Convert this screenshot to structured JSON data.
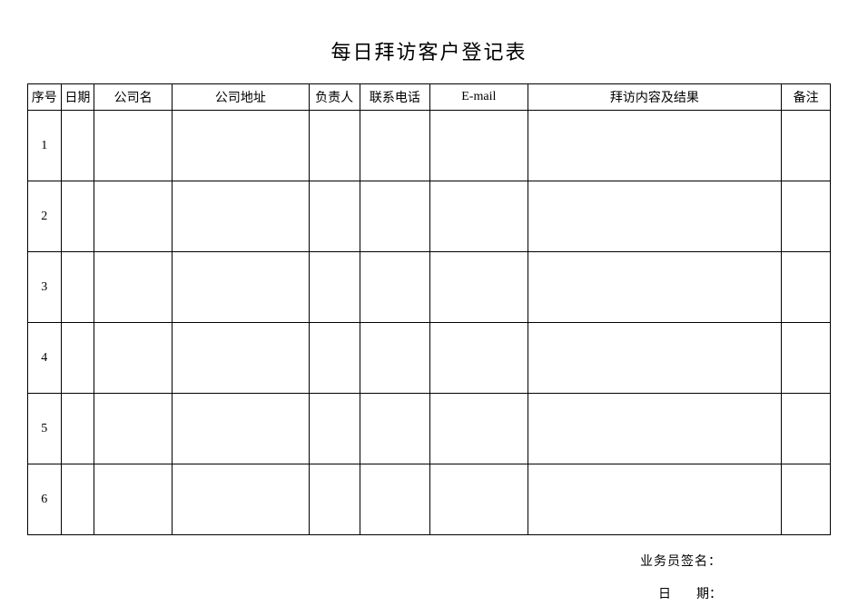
{
  "title": "每日拜访客户登记表",
  "table": {
    "columns": [
      {
        "label": "序号",
        "class": "col-seq"
      },
      {
        "label": "日期",
        "class": "col-date"
      },
      {
        "label": "公司名",
        "class": "col-company"
      },
      {
        "label": "公司地址",
        "class": "col-address"
      },
      {
        "label": "负责人",
        "class": "col-contact"
      },
      {
        "label": "联系电话",
        "class": "col-phone"
      },
      {
        "label": "E-mail",
        "class": "col-email"
      },
      {
        "label": "拜访内容及结果",
        "class": "col-result"
      },
      {
        "label": "备注",
        "class": "col-remark"
      }
    ],
    "rows": [
      {
        "seq": "1",
        "date": "",
        "company": "",
        "address": "",
        "contact": "",
        "phone": "",
        "email": "",
        "result": "",
        "remark": ""
      },
      {
        "seq": "2",
        "date": "",
        "company": "",
        "address": "",
        "contact": "",
        "phone": "",
        "email": "",
        "result": "",
        "remark": ""
      },
      {
        "seq": "3",
        "date": "",
        "company": "",
        "address": "",
        "contact": "",
        "phone": "",
        "email": "",
        "result": "",
        "remark": ""
      },
      {
        "seq": "4",
        "date": "",
        "company": "",
        "address": "",
        "contact": "",
        "phone": "",
        "email": "",
        "result": "",
        "remark": ""
      },
      {
        "seq": "5",
        "date": "",
        "company": "",
        "address": "",
        "contact": "",
        "phone": "",
        "email": "",
        "result": "",
        "remark": ""
      },
      {
        "seq": "6",
        "date": "",
        "company": "",
        "address": "",
        "contact": "",
        "phone": "",
        "email": "",
        "result": "",
        "remark": ""
      }
    ]
  },
  "footer": {
    "signature_label": "业务员签名：",
    "date_label": "日　　期："
  },
  "style": {
    "background_color": "#ffffff",
    "border_color": "#000000",
    "title_fontsize": 22,
    "header_row_height": 28,
    "body_row_height": 78,
    "cell_fontsize": 14,
    "footer_fontsize": 14
  }
}
